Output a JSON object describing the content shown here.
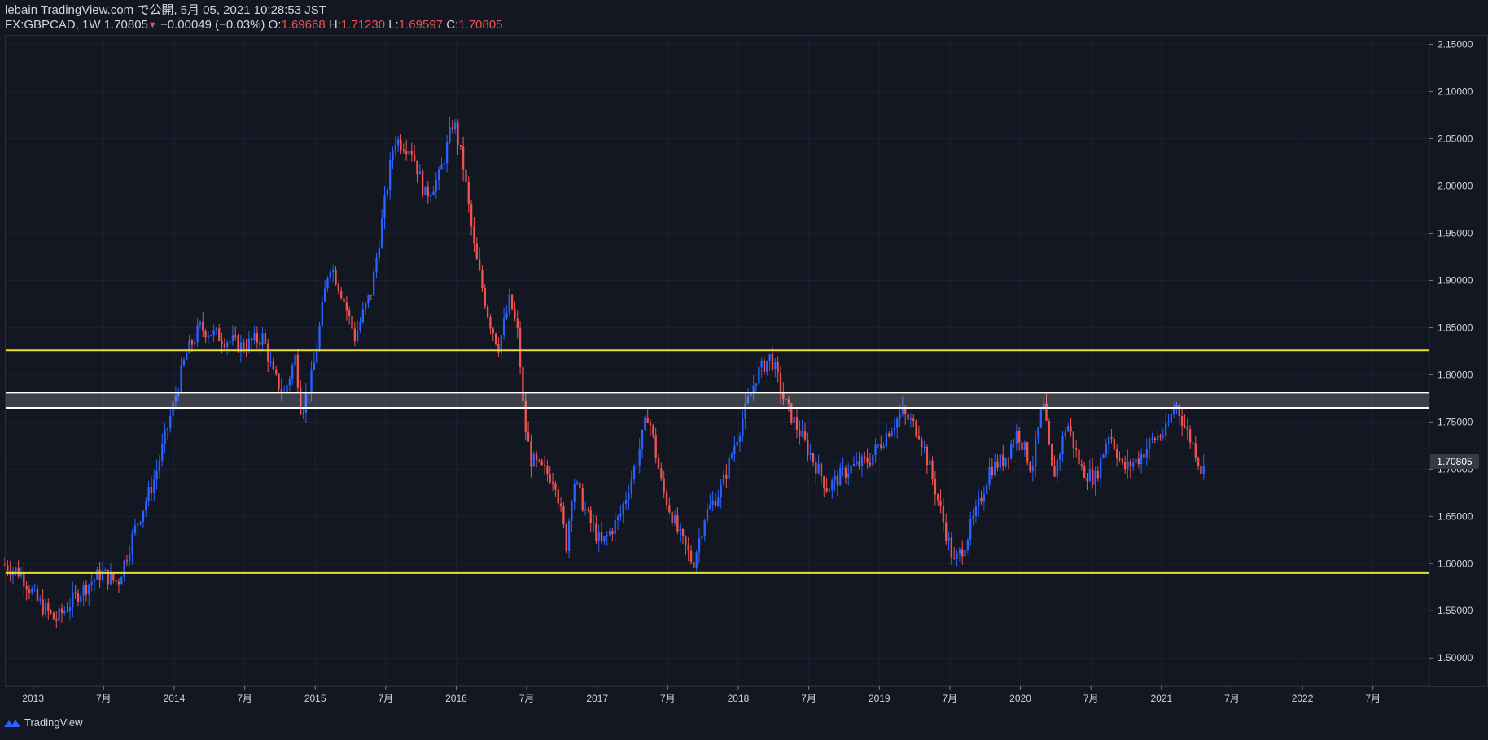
{
  "header": {
    "line1": "lebain TradingView.com で公開, 5月 05, 2021 10:28:53 JST",
    "symbol": "FX:GBPCAD, 1W",
    "price": "1.70805",
    "change": "−0.00049 (−0.03%)",
    "o_label": "O:",
    "o_value": "1.69668",
    "h_label": "H:",
    "h_value": "1.71230",
    "l_label": "L:",
    "l_value": "1.69597",
    "c_label": "C:",
    "c_value": "1.70805"
  },
  "last_price_label": "1.70805",
  "footer": {
    "brand": "TradingView"
  },
  "colors": {
    "background": "#131722",
    "up": "#2962ff",
    "down": "#ef5350",
    "support_line": "#e8dd3a",
    "zone_line": "#ffffff",
    "axis_text": "#d1d4dc"
  },
  "chart_data": {
    "type": "candlestick",
    "symbol": "FX:GBPCAD",
    "timeframe": "1W",
    "ylim": [
      1.47,
      2.16
    ],
    "y_ticks": [
      "2.15000",
      "2.10000",
      "2.05000",
      "2.00000",
      "1.95000",
      "1.90000",
      "1.85000",
      "1.80000",
      "1.75000",
      "1.70000",
      "1.65000",
      "1.60000",
      "1.55000",
      "1.50000"
    ],
    "y_tick_values": [
      2.15,
      2.1,
      2.05,
      2.0,
      1.95,
      1.9,
      1.85,
      1.8,
      1.75,
      1.7,
      1.65,
      1.6,
      1.55,
      1.5
    ],
    "x_ticks": [
      "2013",
      "7月",
      "2014",
      "7月",
      "2015",
      "7月",
      "2016",
      "7月",
      "2017",
      "7月",
      "2018",
      "7月",
      "2019",
      "7月",
      "2020",
      "7月",
      "2021",
      "7月",
      "2022",
      "7月"
    ],
    "x_tick_years": [
      2013.0,
      2013.5,
      2014.0,
      2014.5,
      2015.0,
      2015.5,
      2016.0,
      2016.5,
      2017.0,
      2017.5,
      2018.0,
      2018.5,
      2019.0,
      2019.5,
      2020.0,
      2020.5,
      2021.0,
      2021.5,
      2022.0,
      2022.5
    ],
    "xlim_years": [
      2012.8,
      2022.9
    ],
    "last_price": 1.70805,
    "horizontal_lines": [
      {
        "price": 1.826,
        "color": "#e8dd3a"
      },
      {
        "price": 1.59,
        "color": "#e8dd3a"
      }
    ],
    "zone": {
      "top": 1.781,
      "bottom": 1.765,
      "color": "#ffffff"
    },
    "price_path": [
      [
        2012.8,
        1.6
      ],
      [
        2012.93,
        1.59
      ],
      [
        2013.05,
        1.56
      ],
      [
        2013.18,
        1.54
      ],
      [
        2013.35,
        1.57
      ],
      [
        2013.5,
        1.59
      ],
      [
        2013.62,
        1.58
      ],
      [
        2013.75,
        1.64
      ],
      [
        2013.88,
        1.69
      ],
      [
        2014.0,
        1.76
      ],
      [
        2014.1,
        1.82
      ],
      [
        2014.2,
        1.85
      ],
      [
        2014.35,
        1.84
      ],
      [
        2014.5,
        1.83
      ],
      [
        2014.65,
        1.84
      ],
      [
        2014.72,
        1.8
      ],
      [
        2014.8,
        1.78
      ],
      [
        2014.88,
        1.82
      ],
      [
        2014.92,
        1.76
      ],
      [
        2015.0,
        1.8
      ],
      [
        2015.05,
        1.85
      ],
      [
        2015.12,
        1.92
      ],
      [
        2015.2,
        1.89
      ],
      [
        2015.3,
        1.84
      ],
      [
        2015.42,
        1.89
      ],
      [
        2015.5,
        1.97
      ],
      [
        2015.58,
        2.05
      ],
      [
        2015.7,
        2.04
      ],
      [
        2015.8,
        1.99
      ],
      [
        2015.9,
        2.01
      ],
      [
        2016.0,
        2.07
      ],
      [
        2016.07,
        2.02
      ],
      [
        2016.15,
        1.93
      ],
      [
        2016.25,
        1.86
      ],
      [
        2016.32,
        1.83
      ],
      [
        2016.4,
        1.88
      ],
      [
        2016.46,
        1.84
      ],
      [
        2016.5,
        1.75
      ],
      [
        2016.55,
        1.71
      ],
      [
        2016.62,
        1.7
      ],
      [
        2016.72,
        1.69
      ],
      [
        2016.8,
        1.62
      ],
      [
        2016.85,
        1.69
      ],
      [
        2016.95,
        1.65
      ],
      [
        2017.05,
        1.62
      ],
      [
        2017.18,
        1.65
      ],
      [
        2017.3,
        1.71
      ],
      [
        2017.38,
        1.76
      ],
      [
        2017.48,
        1.68
      ],
      [
        2017.6,
        1.63
      ],
      [
        2017.7,
        1.6
      ],
      [
        2017.78,
        1.65
      ],
      [
        2017.9,
        1.68
      ],
      [
        2018.0,
        1.73
      ],
      [
        2018.15,
        1.8
      ],
      [
        2018.25,
        1.82
      ],
      [
        2018.35,
        1.77
      ],
      [
        2018.45,
        1.74
      ],
      [
        2018.55,
        1.71
      ],
      [
        2018.65,
        1.68
      ],
      [
        2018.8,
        1.7
      ],
      [
        2018.95,
        1.71
      ],
      [
        2019.08,
        1.74
      ],
      [
        2019.18,
        1.76
      ],
      [
        2019.3,
        1.74
      ],
      [
        2019.38,
        1.7
      ],
      [
        2019.48,
        1.64
      ],
      [
        2019.55,
        1.6
      ],
      [
        2019.62,
        1.62
      ],
      [
        2019.72,
        1.66
      ],
      [
        2019.8,
        1.7
      ],
      [
        2019.9,
        1.71
      ],
      [
        2020.0,
        1.74
      ],
      [
        2020.1,
        1.7
      ],
      [
        2020.18,
        1.77
      ],
      [
        2020.25,
        1.69
      ],
      [
        2020.35,
        1.75
      ],
      [
        2020.45,
        1.7
      ],
      [
        2020.55,
        1.69
      ],
      [
        2020.65,
        1.74
      ],
      [
        2020.75,
        1.7
      ],
      [
        2020.85,
        1.71
      ],
      [
        2020.95,
        1.73
      ],
      [
        2021.05,
        1.74
      ],
      [
        2021.12,
        1.77
      ],
      [
        2021.2,
        1.74
      ],
      [
        2021.26,
        1.72
      ],
      [
        2021.3,
        1.7
      ]
    ]
  }
}
